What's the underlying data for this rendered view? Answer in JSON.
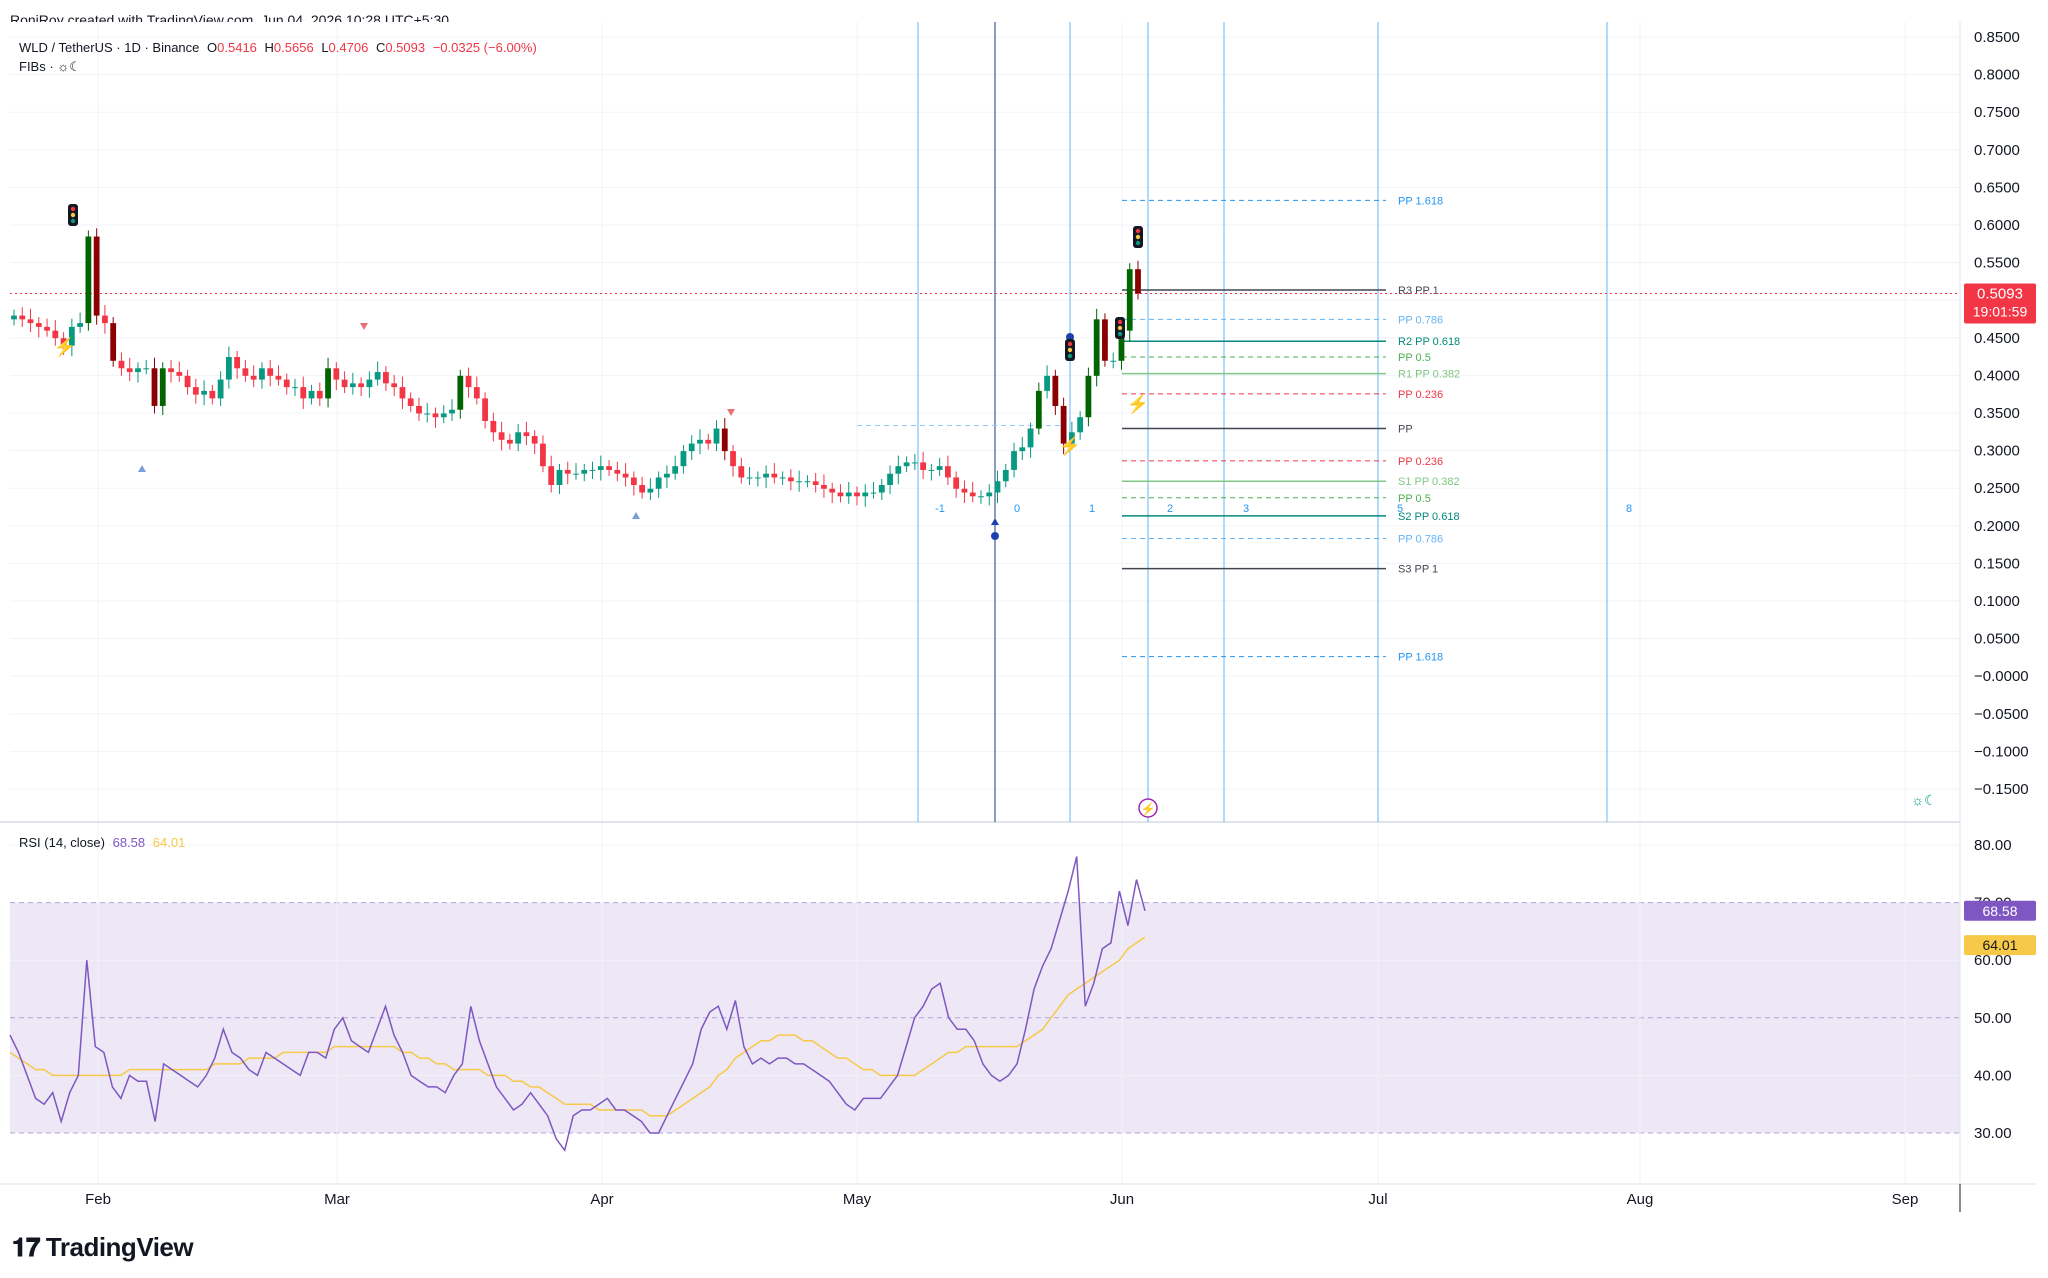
{
  "header": {
    "text": "RoniRoy created with TradingView.com, Jun 04, 2026 10:28 UTC+5:30"
  },
  "legend": {
    "symbol": "WLD / TetherUS · 1D · Binance",
    "o_label": "O",
    "o_value": "0.5416",
    "h_label": "H",
    "h_value": "0.5656",
    "l_label": "L",
    "l_value": "0.4706",
    "c_label": "C",
    "c_value": "0.5093",
    "change": "−0.0325 (−6.00%)",
    "indicator": "FIBs · ☼☾"
  },
  "rsi_legend": {
    "label": "RSI (14, close)",
    "rsi": "68.58",
    "ma": "64.01"
  },
  "price_badge": {
    "price": "0.5093",
    "countdown": "19:01:59"
  },
  "footer": {
    "brand": "TradingView"
  },
  "colors": {
    "up": "#089981",
    "down": "#f23645",
    "up_dark": "#006400",
    "down_dark": "#8b0000",
    "rsi_line": "#7e57c2",
    "rsi_ma": "#f7c948",
    "rsi_band": "#ede7f6",
    "fib_blue": "#2196f3"
  },
  "chart_data": [
    {
      "type": "candlestick",
      "title": "WLD / TetherUS · 1D · Binance",
      "x_ticks": [
        "Feb",
        "Mar",
        "Apr",
        "May",
        "Jun",
        "Jul",
        "Aug",
        "Sep"
      ],
      "y_ticks": [
        "0.8500",
        "0.8000",
        "0.7500",
        "0.7000",
        "0.6500",
        "0.6000",
        "0.5500",
        "0.5000",
        "0.4500",
        "0.4000",
        "0.3500",
        "0.3000",
        "0.2500",
        "0.2000",
        "0.1500",
        "0.1000",
        "0.0500",
        "−0.0000",
        "−0.0500",
        "−0.1000",
        "−0.1500"
      ],
      "ylim": [
        -0.18,
        0.86
      ],
      "close_path": [
        0.48,
        0.475,
        0.47,
        0.465,
        0.46,
        0.45,
        0.44,
        0.465,
        0.47,
        0.585,
        0.48,
        0.47,
        0.42,
        0.41,
        0.405,
        0.41,
        0.41,
        0.36,
        0.41,
        0.405,
        0.4,
        0.385,
        0.375,
        0.38,
        0.37,
        0.395,
        0.425,
        0.41,
        0.4,
        0.395,
        0.41,
        0.4,
        0.395,
        0.385,
        0.385,
        0.37,
        0.38,
        0.37,
        0.41,
        0.395,
        0.385,
        0.39,
        0.385,
        0.395,
        0.405,
        0.39,
        0.385,
        0.37,
        0.36,
        0.35,
        0.35,
        0.345,
        0.35,
        0.355,
        0.4,
        0.385,
        0.37,
        0.34,
        0.325,
        0.315,
        0.31,
        0.325,
        0.32,
        0.31,
        0.28,
        0.255,
        0.275,
        0.27,
        0.27,
        0.275,
        0.275,
        0.28,
        0.275,
        0.27,
        0.265,
        0.255,
        0.245,
        0.25,
        0.265,
        0.27,
        0.28,
        0.3,
        0.31,
        0.315,
        0.31,
        0.33,
        0.3,
        0.28,
        0.265,
        0.265,
        0.265,
        0.27,
        0.265,
        0.265,
        0.26,
        0.26,
        0.26,
        0.255,
        0.25,
        0.245,
        0.24,
        0.245,
        0.24,
        0.245,
        0.245,
        0.255,
        0.27,
        0.28,
        0.285,
        0.285,
        0.275,
        0.275,
        0.28,
        0.265,
        0.25,
        0.245,
        0.24,
        0.24,
        0.245,
        0.26,
        0.275,
        0.3,
        0.305,
        0.33,
        0.38,
        0.4,
        0.36,
        0.31,
        0.325,
        0.345,
        0.4,
        0.475,
        0.42,
        0.42,
        0.46,
        0.5416,
        0.5093
      ],
      "close_path_unit": "price (USDT), one value per daily candle, Jan 22 → Jun 04",
      "fib_levels": [
        {
          "label": "PP 1.618",
          "value": 0.633,
          "style": "dashed",
          "color": "#2196f3"
        },
        {
          "label": "R3 PP 1",
          "value": 0.514,
          "style": "solid",
          "color": "#434651"
        },
        {
          "label": "PP 0.786",
          "value": 0.475,
          "style": "dashed",
          "color": "#64b5f6"
        },
        {
          "label": "R2 PP 0.618",
          "value": 0.446,
          "style": "solid",
          "color": "#00897b"
        },
        {
          "label": "PP 0.5",
          "value": 0.425,
          "style": "dashed",
          "color": "#4caf50"
        },
        {
          "label": "R1 PP 0.382",
          "value": 0.403,
          "style": "solid",
          "color": "#81c784"
        },
        {
          "label": "PP 0.236",
          "value": 0.376,
          "style": "dashed",
          "color": "#f23645"
        },
        {
          "label": "PP",
          "value": 0.33,
          "style": "solid",
          "color": "#434651"
        },
        {
          "label": "PP 0.236",
          "value": 0.287,
          "style": "dashed",
          "color": "#f23645"
        },
        {
          "label": "S1 PP 0.382",
          "value": 0.26,
          "style": "solid",
          "color": "#81c784"
        },
        {
          "label": "PP 0.5",
          "value": 0.238,
          "style": "dashed",
          "color": "#4caf50"
        },
        {
          "label": "S2 PP 0.618",
          "value": 0.214,
          "style": "solid",
          "color": "#00897b"
        },
        {
          "label": "PP 0.786",
          "value": 0.184,
          "style": "dashed",
          "color": "#64b5f6"
        },
        {
          "label": "S3 PP 1",
          "value": 0.144,
          "style": "solid",
          "color": "#434651"
        },
        {
          "label": "PP 1.618",
          "value": 0.027,
          "style": "dashed",
          "color": "#2196f3"
        }
      ],
      "time_zone_labels": [
        "-1",
        "0",
        "1",
        "2",
        "3",
        "5",
        "8"
      ],
      "last_price": 0.5093
    },
    {
      "type": "line",
      "title": "RSI (14, close)",
      "y_ticks": [
        "80.00",
        "70.00",
        "60.00",
        "50.00",
        "40.00",
        "30.00"
      ],
      "ylim": [
        25,
        82
      ],
      "band": [
        30,
        70
      ],
      "series": [
        {
          "name": "RSI",
          "values": [
            47,
            44,
            40,
            36,
            35,
            37,
            32,
            37,
            40,
            60,
            45,
            44,
            38,
            36,
            40,
            39,
            39,
            32,
            42,
            41,
            40,
            39,
            38,
            40,
            43,
            48,
            44,
            43,
            41,
            40,
            44,
            43,
            42,
            41,
            40,
            44,
            44,
            43,
            48,
            50,
            46,
            45,
            44,
            48,
            52,
            47,
            44,
            40,
            39,
            38,
            38,
            37,
            40,
            42,
            52,
            46,
            42,
            38,
            36,
            34,
            35,
            37,
            35,
            33,
            29,
            27,
            33,
            34,
            34,
            35,
            36,
            34,
            34,
            33,
            32,
            30,
            30,
            33,
            36,
            39,
            42,
            48,
            51,
            52,
            48,
            53,
            45,
            42,
            43,
            42,
            43,
            43,
            42,
            42,
            41,
            40,
            39,
            37,
            35,
            34,
            36,
            36,
            36,
            38,
            40,
            45,
            50,
            52,
            55,
            56,
            50,
            48,
            48,
            46,
            42,
            40,
            39,
            40,
            42,
            48,
            55,
            59,
            62,
            67,
            72,
            78,
            52,
            56,
            62,
            63,
            72,
            66,
            74,
            68.58
          ]
        },
        {
          "name": "MA",
          "values": [
            44,
            43,
            42,
            41,
            41,
            40,
            40,
            40,
            40,
            40,
            40,
            40,
            40,
            40,
            41,
            41,
            41,
            41,
            41,
            41,
            41,
            41,
            41,
            41,
            42,
            42,
            42,
            42,
            43,
            43,
            43,
            43,
            44,
            44,
            44,
            44,
            44,
            44,
            45,
            45,
            45,
            45,
            45,
            45,
            45,
            45,
            44,
            44,
            43,
            43,
            42,
            42,
            41,
            41,
            41,
            41,
            40,
            40,
            40,
            39,
            39,
            38,
            38,
            37,
            36,
            35,
            35,
            35,
            35,
            34,
            34,
            34,
            34,
            34,
            34,
            33,
            33,
            33,
            34,
            35,
            36,
            37,
            38,
            40,
            41,
            43,
            44,
            45,
            46,
            46,
            47,
            47,
            47,
            46,
            46,
            45,
            44,
            43,
            43,
            42,
            41,
            41,
            40,
            40,
            40,
            40,
            40,
            41,
            42,
            43,
            44,
            44,
            45,
            45,
            45,
            45,
            45,
            45,
            45,
            46,
            47,
            48,
            50,
            52,
            54,
            55,
            56,
            57,
            58,
            59,
            60,
            62,
            63,
            64.01
          ]
        }
      ]
    }
  ]
}
